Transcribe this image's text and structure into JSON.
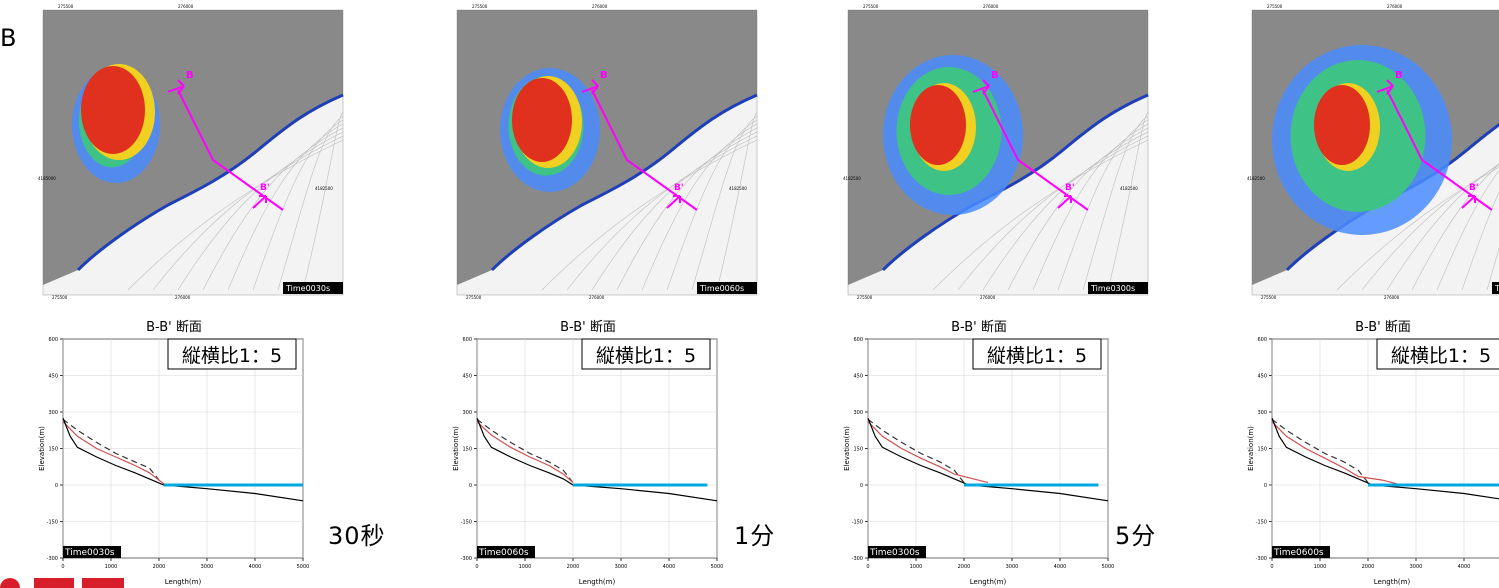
{
  "page": {
    "edge_label": "B",
    "colors": {
      "magenta": "#ff00ff",
      "water": "#00a8e0",
      "coast": "#1f3fb8",
      "debris": "#e0301e",
      "logo": "#d81e2a"
    }
  },
  "panels": [
    {
      "time_text": "30秒",
      "map": {
        "corner_label": "Time0030s",
        "coords_top": [
          "275500",
          "276000"
        ],
        "coords_bottom": [
          "275500",
          "276000"
        ],
        "coords_left": "4185000",
        "coords_right": "4182500",
        "section_start": "B",
        "section_end": "B'"
      },
      "chart_data": {
        "type": "line",
        "title": "B-B' 断面",
        "annotation": "縦横比1：5",
        "time_label": "Time0030s",
        "xlabel": "Length(m)",
        "ylabel": "Elevation(m)",
        "xlim": [
          0,
          5000
        ],
        "ylim": [
          -300,
          600
        ],
        "xticks": [
          "0",
          "1000",
          "2000",
          "3000",
          "4000",
          "5000"
        ],
        "yticks": [
          "600",
          "450",
          "300",
          "150",
          "0",
          "-150",
          "-300"
        ],
        "series": [
          {
            "style": "dashed",
            "color": "#333333",
            "points": [
              [
                0,
                270
              ],
              [
                300,
                225
              ],
              [
                700,
                175
              ],
              [
                1100,
                130
              ],
              [
                1500,
                95
              ],
              [
                1800,
                70
              ],
              [
                2000,
                20
              ],
              [
                2100,
                5
              ]
            ]
          },
          {
            "style": "solid",
            "color": "#d05050",
            "points": [
              [
                0,
                260
              ],
              [
                300,
                200
              ],
              [
                700,
                150
              ],
              [
                1100,
                115
              ],
              [
                1500,
                80
              ],
              [
                1800,
                50
              ],
              [
                2100,
                5
              ]
            ]
          },
          {
            "style": "solid",
            "color": "#000000",
            "points": [
              [
                0,
                275
              ],
              [
                150,
                200
              ],
              [
                300,
                155
              ],
              [
                700,
                115
              ],
              [
                1100,
                80
              ],
              [
                1500,
                50
              ],
              [
                1800,
                25
              ],
              [
                2100,
                0
              ],
              [
                3000,
                -15
              ],
              [
                4000,
                -35
              ],
              [
                5000,
                -65
              ]
            ]
          },
          {
            "style": "solid",
            "color": "#00a8e0",
            "points": [
              [
                2100,
                0
              ],
              [
                5000,
                0
              ]
            ]
          }
        ]
      }
    },
    {
      "time_text": "1分",
      "map": {
        "corner_label": "Time0060s",
        "coords_top": [
          "275500",
          "276000"
        ],
        "coords_bottom": [
          "275500",
          "276000"
        ],
        "coords_left": "",
        "coords_right": "4182500",
        "section_start": "B",
        "section_end": "B'"
      },
      "chart_data": {
        "type": "line",
        "title": "B-B' 断面",
        "annotation": "縦横比1：5",
        "time_label": "Time0060s",
        "xlabel": "Length(m)",
        "ylabel": "Elevation(m)",
        "xlim": [
          0,
          5000
        ],
        "ylim": [
          -300,
          600
        ],
        "xticks": [
          "0",
          "1000",
          "2000",
          "3000",
          "4000",
          "5000"
        ],
        "yticks": [
          "600",
          "450",
          "300",
          "150",
          "0",
          "-150",
          "-300"
        ],
        "series": [
          {
            "style": "dashed",
            "color": "#333333",
            "points": [
              [
                0,
                270
              ],
              [
                300,
                225
              ],
              [
                700,
                175
              ],
              [
                1100,
                130
              ],
              [
                1500,
                95
              ],
              [
                1800,
                60
              ],
              [
                2000,
                10
              ]
            ]
          },
          {
            "style": "solid",
            "color": "#d05050",
            "points": [
              [
                0,
                260
              ],
              [
                300,
                205
              ],
              [
                700,
                155
              ],
              [
                1100,
                115
              ],
              [
                1500,
                80
              ],
              [
                1800,
                45
              ],
              [
                2000,
                10
              ]
            ]
          },
          {
            "style": "solid",
            "color": "#000000",
            "points": [
              [
                0,
                275
              ],
              [
                150,
                200
              ],
              [
                300,
                155
              ],
              [
                700,
                115
              ],
              [
                1100,
                80
              ],
              [
                1500,
                50
              ],
              [
                1800,
                25
              ],
              [
                2000,
                0
              ],
              [
                3000,
                -15
              ],
              [
                4000,
                -35
              ],
              [
                5000,
                -65
              ]
            ]
          },
          {
            "style": "solid",
            "color": "#00a8e0",
            "points": [
              [
                2000,
                0
              ],
              [
                4800,
                0
              ]
            ]
          }
        ]
      }
    },
    {
      "time_text": "5分",
      "map": {
        "corner_label": "Time0300s",
        "coords_top": [
          "275500",
          "276000"
        ],
        "coords_bottom": [
          "275500",
          "276000"
        ],
        "coords_left": "4182500",
        "coords_right": "4182500",
        "section_start": "B",
        "section_end": "B'"
      },
      "chart_data": {
        "type": "line",
        "title": "B-B' 断面",
        "annotation": "縦横比1：5",
        "time_label": "Time0300s",
        "xlabel": "Length(m)",
        "ylabel": "Elevation(m)",
        "xlim": [
          0,
          5000
        ],
        "ylim": [
          -300,
          600
        ],
        "xticks": [
          "0",
          "1000",
          "2000",
          "3000",
          "4000",
          "5000"
        ],
        "yticks": [
          "600",
          "450",
          "300",
          "150",
          "0",
          "-150",
          "-300"
        ],
        "series": [
          {
            "style": "dashed",
            "color": "#333333",
            "points": [
              [
                0,
                270
              ],
              [
                300,
                225
              ],
              [
                700,
                175
              ],
              [
                1100,
                130
              ],
              [
                1500,
                95
              ],
              [
                1800,
                60
              ],
              [
                2000,
                10
              ]
            ]
          },
          {
            "style": "solid",
            "color": "#d05050",
            "points": [
              [
                0,
                260
              ],
              [
                300,
                200
              ],
              [
                700,
                150
              ],
              [
                1100,
                110
              ],
              [
                1500,
                75
              ],
              [
                1800,
                45
              ],
              [
                2200,
                25
              ],
              [
                2500,
                10
              ]
            ]
          },
          {
            "style": "solid",
            "color": "#000000",
            "points": [
              [
                0,
                275
              ],
              [
                150,
                200
              ],
              [
                300,
                155
              ],
              [
                700,
                115
              ],
              [
                1100,
                80
              ],
              [
                1500,
                50
              ],
              [
                1800,
                25
              ],
              [
                2100,
                0
              ],
              [
                3000,
                -15
              ],
              [
                4000,
                -35
              ],
              [
                5000,
                -65
              ]
            ]
          },
          {
            "style": "solid",
            "color": "#00a8e0",
            "points": [
              [
                2000,
                0
              ],
              [
                4800,
                0
              ]
            ]
          }
        ]
      }
    },
    {
      "time_text": "",
      "map": {
        "corner_label": "Time",
        "coords_top": [
          "275500",
          "276000"
        ],
        "coords_bottom": [
          "275500",
          "276000"
        ],
        "coords_left": "4182500",
        "coords_right": "",
        "section_start": "B",
        "section_end": "B'"
      },
      "chart_data": {
        "type": "line",
        "title": "B-B' 断面",
        "annotation": "縦横比1：5",
        "time_label": "Time0600s",
        "xlabel": "Length(m)",
        "ylabel": "Elevation(m)",
        "xlim": [
          0,
          5000
        ],
        "ylim": [
          -300,
          600
        ],
        "xticks": [
          "0",
          "1000",
          "2000",
          "3000",
          "4000"
        ],
        "yticks": [
          "600",
          "450",
          "300",
          "150",
          "0",
          "-150",
          "-300"
        ],
        "series": [
          {
            "style": "dashed",
            "color": "#333333",
            "points": [
              [
                0,
                270
              ],
              [
                300,
                225
              ],
              [
                700,
                175
              ],
              [
                1100,
                130
              ],
              [
                1500,
                95
              ],
              [
                1800,
                60
              ],
              [
                2000,
                10
              ]
            ]
          },
          {
            "style": "solid",
            "color": "#d05050",
            "points": [
              [
                0,
                260
              ],
              [
                300,
                200
              ],
              [
                700,
                150
              ],
              [
                1100,
                110
              ],
              [
                1500,
                70
              ],
              [
                1800,
                35
              ],
              [
                2300,
                20
              ],
              [
                2600,
                5
              ]
            ]
          },
          {
            "style": "solid",
            "color": "#000000",
            "points": [
              [
                0,
                275
              ],
              [
                150,
                200
              ],
              [
                300,
                155
              ],
              [
                700,
                115
              ],
              [
                1100,
                80
              ],
              [
                1500,
                50
              ],
              [
                1800,
                25
              ],
              [
                2100,
                0
              ],
              [
                3000,
                -15
              ],
              [
                4000,
                -35
              ],
              [
                5000,
                -65
              ]
            ]
          },
          {
            "style": "solid",
            "color": "#00a8e0",
            "points": [
              [
                2000,
                0
              ],
              [
                5000,
                0
              ]
            ]
          }
        ]
      }
    }
  ]
}
